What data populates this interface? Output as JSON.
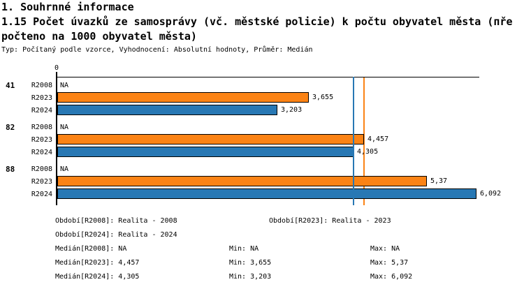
{
  "header": {
    "section_title": "1. Souhrnné informace",
    "indicator_title_line1": "1.15 Počet úvazků ze samosprávy (vč. městské policie) k počtu obyvatel města (пře",
    "indicator_title_line2": "počteno na 1000 obyvatel města)",
    "meta_line": "Typ: Počítaný podle vzorce, Vyhodnocení: Absolutní hodnoty, Průměr: Medián"
  },
  "chart_data": {
    "type": "bar",
    "orientation": "horizontal",
    "title": "1.15 Počet úvazků ze samosprávy (vč. městské policie) k počtu obyvatel města (přepočteno na 1000 obyvatel města)",
    "axis_zero_label": "0",
    "xlim": [
      0,
      6.092
    ],
    "grid": false,
    "categories": [
      "41",
      "82",
      "88"
    ],
    "series_labels": [
      "R2008",
      "R2023",
      "R2024"
    ],
    "colors": {
      "R2008": "#ffffff",
      "R2023": "#FB8315",
      "R2024": "#2878B4"
    },
    "groups": [
      {
        "category": "41",
        "bars": [
          {
            "series": "R2008",
            "value": null,
            "display": "NA"
          },
          {
            "series": "R2023",
            "value": 3.655,
            "display": "3,655"
          },
          {
            "series": "R2024",
            "value": 3.203,
            "display": "3,203"
          }
        ]
      },
      {
        "category": "82",
        "bars": [
          {
            "series": "R2008",
            "value": null,
            "display": "NA"
          },
          {
            "series": "R2023",
            "value": 4.457,
            "display": "4,457"
          },
          {
            "series": "R2024",
            "value": 4.305,
            "display": "4,305"
          }
        ]
      },
      {
        "category": "88",
        "bars": [
          {
            "series": "R2008",
            "value": null,
            "display": "NA"
          },
          {
            "series": "R2023",
            "value": 5.37,
            "display": "5,37"
          },
          {
            "series": "R2024",
            "value": 6.092,
            "display": "6,092"
          }
        ]
      }
    ],
    "median_lines": [
      {
        "series": "R2023",
        "value": 4.457,
        "color": "#FB8315",
        "layer": "under"
      },
      {
        "series": "R2024",
        "value": 4.305,
        "color": "#2878B4",
        "layer": "over"
      }
    ]
  },
  "legend": {
    "rows": [
      [
        {
          "col": "left",
          "text": "Období[R2008]: Realita - 2008"
        },
        {
          "col": "mid_wide",
          "text": "Období[R2023]: Realita - 2023"
        }
      ],
      [
        {
          "col": "left",
          "text": "Období[R2024]: Realita - 2024"
        }
      ],
      [
        {
          "col": "left",
          "text": "Medián[R2008]: NA"
        },
        {
          "col": "mid",
          "text": "Min: NA"
        },
        {
          "col": "right",
          "text": "Max: NA"
        }
      ],
      [
        {
          "col": "left",
          "text": "Medián[R2023]: 4,457"
        },
        {
          "col": "mid",
          "text": "Min: 3,655"
        },
        {
          "col": "right",
          "text": "Max: 5,37"
        }
      ],
      [
        {
          "col": "left",
          "text": "Medián[R2024]: 4,305"
        },
        {
          "col": "mid",
          "text": "Min: 3,203"
        },
        {
          "col": "right",
          "text": "Max: 6,092"
        }
      ]
    ]
  }
}
